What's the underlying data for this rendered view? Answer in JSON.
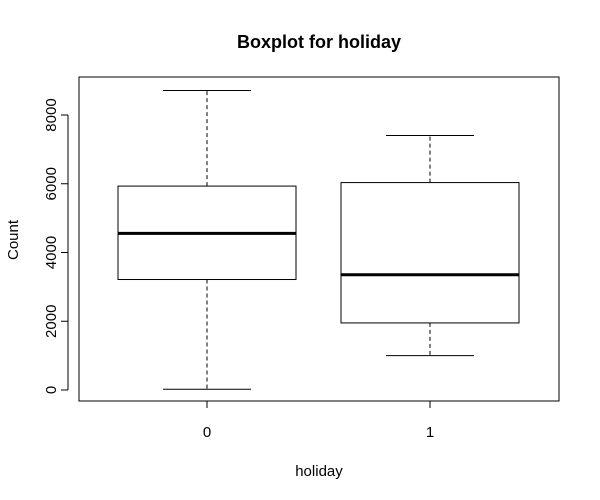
{
  "chart_data": {
    "type": "boxplot",
    "title": "Boxplot for holiday",
    "xlabel": "holiday",
    "ylabel": "Count",
    "categories": [
      "0",
      "1"
    ],
    "boxes": [
      {
        "category": "0",
        "whisker_low": 22,
        "q1": 3214,
        "median": 4558,
        "q3": 5932,
        "whisker_high": 8714
      },
      {
        "category": "1",
        "whisker_low": 1000,
        "q1": 1951,
        "median": 3351,
        "q3": 6034,
        "whisker_high": 7403
      }
    ],
    "yticks": [
      0,
      2000,
      4000,
      6000,
      8000
    ],
    "ylim": [
      -300,
      9000
    ],
    "grid": false
  }
}
